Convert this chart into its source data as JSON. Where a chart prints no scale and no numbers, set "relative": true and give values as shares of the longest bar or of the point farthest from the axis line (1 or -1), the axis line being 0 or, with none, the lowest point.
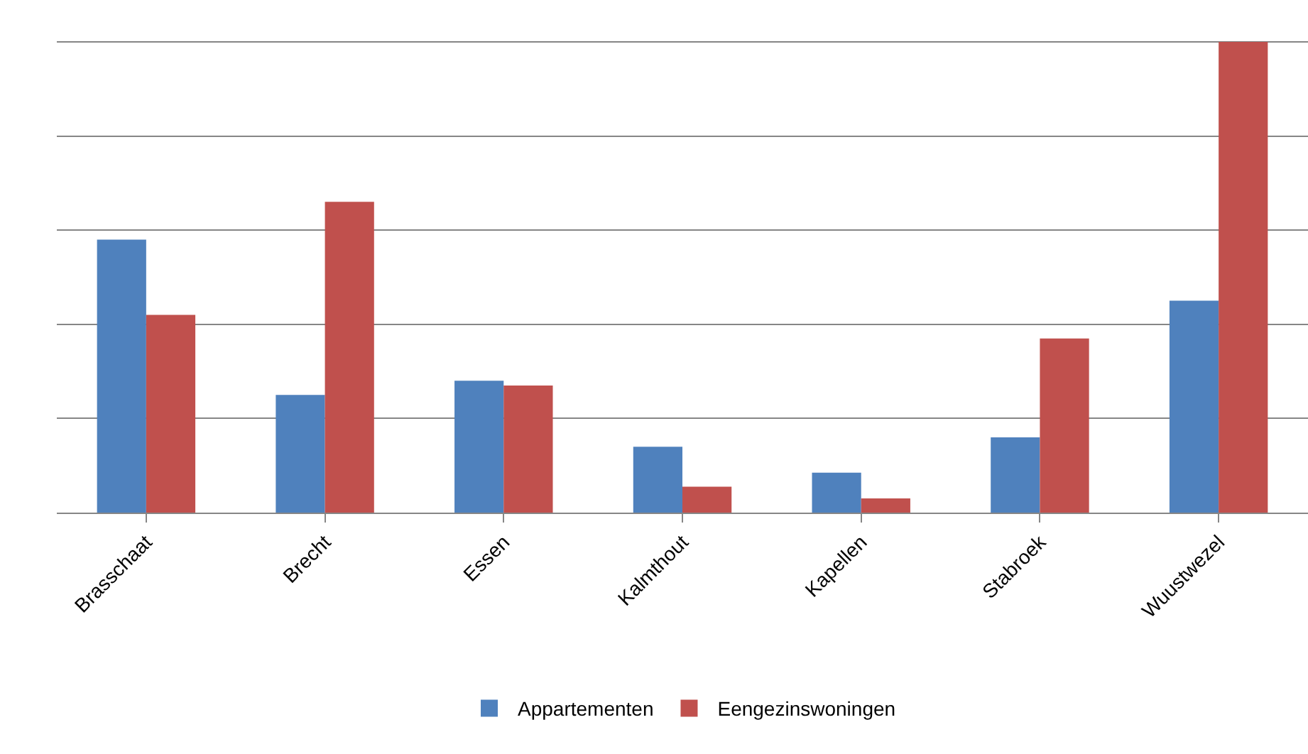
{
  "chart_data": {
    "type": "bar",
    "relative": true,
    "grid": "y",
    "legend": "bottom",
    "categories": [
      "Brasschaat",
      "Brecht",
      "Essen",
      "Kalmthout",
      "Kapellen",
      "Stabroek",
      "Wuustwezel"
    ],
    "series": [
      {
        "name": "Appartementen",
        "color": "#4f81bd",
        "values": [
          0.58,
          0.25,
          0.28,
          0.14,
          0.085,
          0.16,
          0.45
        ]
      },
      {
        "name": "Eengezinswoningen",
        "color": "#c0504d",
        "values": [
          0.42,
          0.66,
          0.27,
          0.055,
          0.03,
          0.37,
          1
        ]
      }
    ]
  }
}
